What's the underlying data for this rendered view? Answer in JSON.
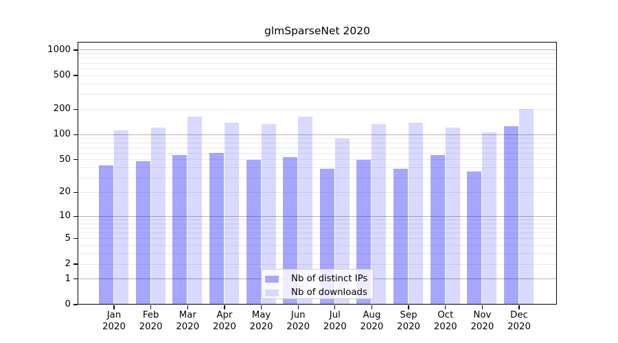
{
  "figure": {
    "background": "#ffffff",
    "frame_color": "#000000"
  },
  "chart_data": {
    "type": "bar",
    "title": "glmSparseNet 2020",
    "categories": [
      "Jan",
      "Feb",
      "Mar",
      "Apr",
      "May",
      "Jun",
      "Jul",
      "Aug",
      "Sep",
      "Oct",
      "Nov",
      "Dec"
    ],
    "x_sublabel": "2020",
    "series": [
      {
        "name": "Nb of distinct IPs",
        "color": "rgba(0,0,255,0.35)",
        "color_on_white": "#a6a6ff",
        "values": [
          43,
          48,
          57,
          60,
          50,
          54,
          39,
          50,
          39,
          57,
          36,
          126
        ]
      },
      {
        "name": "Nb of downloads",
        "color": "rgba(0,0,255,0.15)",
        "color_on_white": "#d9d9ff",
        "values": [
          113,
          120,
          162,
          138,
          134,
          162,
          90,
          132,
          138,
          122,
          106,
          199
        ]
      }
    ],
    "xlabel": "",
    "ylabel": "",
    "yscale": "log1p",
    "ylim": [
      0,
      1250
    ],
    "y_ticks": [
      0,
      1,
      2,
      5,
      10,
      20,
      50,
      100,
      200,
      500,
      1000
    ],
    "grid": {
      "major_lines": [
        1,
        10,
        100,
        1000
      ],
      "minor_multipliers": [
        2,
        3,
        4,
        5,
        6,
        7,
        8,
        9
      ],
      "minor_decades": [
        1,
        10,
        100
      ],
      "major_color": "#b2b2b2",
      "minor_color": "#e9e9e9"
    },
    "legend": {
      "position": "lower center",
      "background": "rgba(255,255,255,0.8)",
      "border_color": "#cccccc"
    }
  }
}
